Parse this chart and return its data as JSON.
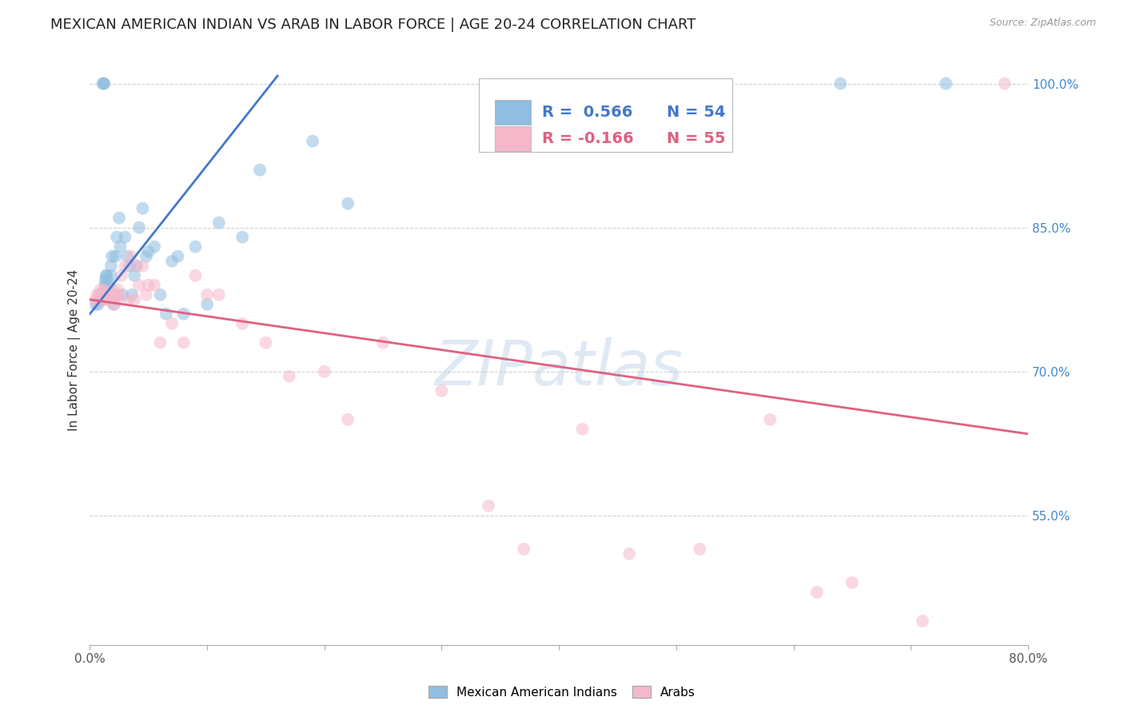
{
  "title": "MEXICAN AMERICAN INDIAN VS ARAB IN LABOR FORCE | AGE 20-24 CORRELATION CHART",
  "source": "Source: ZipAtlas.com",
  "ylabel": "In Labor Force | Age 20-24",
  "xlim": [
    0.0,
    0.8
  ],
  "ylim": [
    0.415,
    1.03
  ],
  "xticks": [
    0.0,
    0.1,
    0.2,
    0.3,
    0.4,
    0.5,
    0.6,
    0.7,
    0.8
  ],
  "xticklabels": [
    "0.0%",
    "",
    "",
    "",
    "",
    "",
    "",
    "",
    "80.0%"
  ],
  "ytick_positions": [
    0.55,
    0.7,
    0.85,
    1.0
  ],
  "ytick_labels": [
    "55.0%",
    "70.0%",
    "85.0%",
    "100.0%"
  ],
  "watermark": "ZIPatlas",
  "blue_scatter_x": [
    0.005,
    0.007,
    0.008,
    0.009,
    0.01,
    0.01,
    0.011,
    0.011,
    0.012,
    0.012,
    0.013,
    0.013,
    0.014,
    0.014,
    0.015,
    0.015,
    0.016,
    0.016,
    0.017,
    0.018,
    0.018,
    0.019,
    0.02,
    0.021,
    0.022,
    0.023,
    0.025,
    0.026,
    0.028,
    0.03,
    0.032,
    0.034,
    0.036,
    0.038,
    0.04,
    0.042,
    0.045,
    0.048,
    0.05,
    0.055,
    0.06,
    0.065,
    0.07,
    0.075,
    0.08,
    0.09,
    0.1,
    0.11,
    0.13,
    0.145,
    0.19,
    0.22,
    0.64,
    0.73
  ],
  "blue_scatter_y": [
    0.77,
    0.77,
    0.775,
    0.775,
    0.775,
    0.78,
    0.78,
    1.0,
    1.0,
    1.0,
    0.79,
    0.795,
    0.8,
    0.8,
    0.79,
    0.795,
    0.78,
    0.785,
    0.78,
    0.8,
    0.81,
    0.82,
    0.77,
    0.78,
    0.82,
    0.84,
    0.86,
    0.83,
    0.78,
    0.84,
    0.82,
    0.81,
    0.78,
    0.8,
    0.81,
    0.85,
    0.87,
    0.82,
    0.825,
    0.83,
    0.78,
    0.76,
    0.815,
    0.82,
    0.76,
    0.83,
    0.77,
    0.855,
    0.84,
    0.91,
    0.94,
    0.875,
    1.0,
    1.0
  ],
  "pink_scatter_x": [
    0.005,
    0.006,
    0.007,
    0.008,
    0.009,
    0.01,
    0.011,
    0.012,
    0.013,
    0.014,
    0.015,
    0.016,
    0.017,
    0.018,
    0.019,
    0.02,
    0.021,
    0.022,
    0.023,
    0.024,
    0.025,
    0.027,
    0.03,
    0.033,
    0.035,
    0.038,
    0.04,
    0.042,
    0.045,
    0.048,
    0.05,
    0.055,
    0.06,
    0.07,
    0.08,
    0.09,
    0.1,
    0.11,
    0.13,
    0.15,
    0.17,
    0.2,
    0.22,
    0.25,
    0.3,
    0.34,
    0.37,
    0.42,
    0.46,
    0.52,
    0.58,
    0.62,
    0.65,
    0.71,
    0.78
  ],
  "pink_scatter_y": [
    0.775,
    0.78,
    0.775,
    0.78,
    0.785,
    0.775,
    0.78,
    0.785,
    0.775,
    0.78,
    0.775,
    0.78,
    0.775,
    0.78,
    0.785,
    0.775,
    0.77,
    0.78,
    0.775,
    0.785,
    0.78,
    0.8,
    0.81,
    0.775,
    0.82,
    0.775,
    0.81,
    0.79,
    0.81,
    0.78,
    0.79,
    0.79,
    0.73,
    0.75,
    0.73,
    0.8,
    0.78,
    0.78,
    0.75,
    0.73,
    0.695,
    0.7,
    0.65,
    0.73,
    0.68,
    0.56,
    0.515,
    0.64,
    0.51,
    0.515,
    0.65,
    0.47,
    0.48,
    0.44,
    1.0
  ],
  "blue_color": "#90bde0",
  "pink_color": "#f5b8cb",
  "blue_line_color": "#4477cc",
  "pink_line_color": "#e06080",
  "background_color": "#ffffff",
  "grid_color": "#d0d0d0",
  "title_fontsize": 13,
  "axis_label_fontsize": 11,
  "tick_fontsize": 11,
  "scatter_size": 130,
  "scatter_alpha": 0.55
}
